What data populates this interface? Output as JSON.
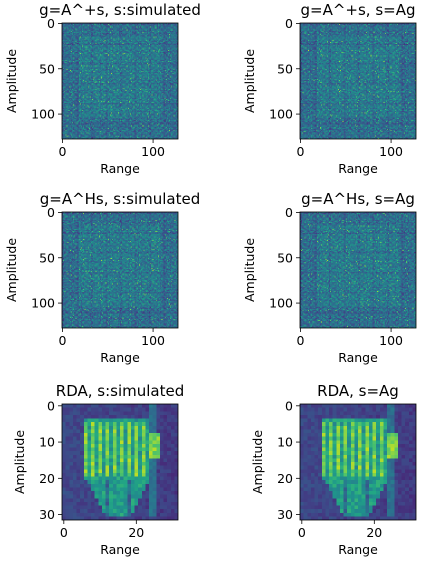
{
  "chart_data": [
    {
      "type": "heatmap",
      "pattern": "noise",
      "title": "g=A^+s, s:simulated",
      "xlabel": "Range",
      "ylabel": "Amplitude",
      "size": 128,
      "colormap": "viridis",
      "xticks": [
        0,
        100
      ],
      "yticks": [
        0,
        50,
        100
      ]
    },
    {
      "type": "heatmap",
      "pattern": "noise",
      "title": "g=A^+s, s=Ag",
      "xlabel": "Range",
      "ylabel": "Amplitude",
      "size": 128,
      "colormap": "viridis",
      "xticks": [
        0,
        100
      ],
      "yticks": [
        0,
        50,
        100
      ]
    },
    {
      "type": "heatmap",
      "pattern": "noise",
      "title": "g=A^Hs, s:simulated",
      "xlabel": "Range",
      "ylabel": "Amplitude",
      "size": 128,
      "colormap": "viridis",
      "xticks": [
        0,
        100
      ],
      "yticks": [
        0,
        50,
        100
      ]
    },
    {
      "type": "heatmap",
      "pattern": "noise",
      "title": "g=A^Hs, s=Ag",
      "xlabel": "Range",
      "ylabel": "Amplitude",
      "size": 128,
      "colormap": "viridis",
      "xticks": [
        0,
        100
      ],
      "yticks": [
        0,
        50,
        100
      ]
    },
    {
      "type": "heatmap",
      "pattern": "rda",
      "title": "RDA, s:simulated",
      "xlabel": "Range",
      "ylabel": "Amplitude",
      "size": 32,
      "colormap": "viridis",
      "xticks": [
        0,
        20
      ],
      "yticks": [
        0,
        10,
        20,
        30
      ]
    },
    {
      "type": "heatmap",
      "pattern": "rda",
      "title": "RDA, s=Ag",
      "xlabel": "Range",
      "ylabel": "Amplitude",
      "size": 32,
      "colormap": "viridis",
      "xticks": [
        0,
        20
      ],
      "yticks": [
        0,
        10,
        20,
        30
      ]
    }
  ]
}
